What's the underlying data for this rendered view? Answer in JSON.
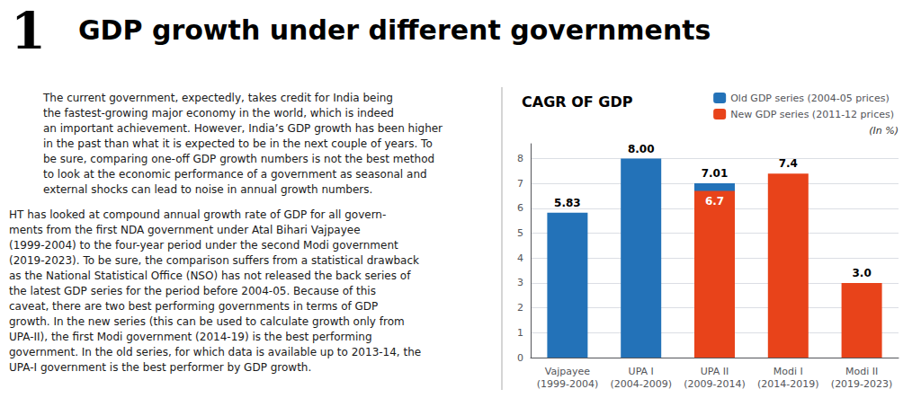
{
  "title_number": "1",
  "title": "GDP growth under different governments",
  "paragraphs": [
    "The current government, expectedly, takes credit for India being\nthe fastest-growing major economy in the world, which is indeed\nan important achievement. However, India’s GDP growth has been higher\nin the past than what it is expected to be in the next couple of years. To\nbe sure, comparing one-off GDP growth numbers is not the best method\nto look at the economic performance of a government as seasonal and\nexternal shocks can lead to noise in annual growth numbers.",
    "HT has looked at compound annual growth rate of GDP for all govern-\nments from the first NDA government under Atal Bihari Vajpayee\n(1999-2004) to the four-year period under the second Modi government\n(2019-2023). To be sure, the comparison suffers from a statistical drawback\nas the National Statistical Office (NSO) has not released the back series of\nthe latest GDP series for the period before 2004-05. Because of this\ncaveat, there are two best performing governments in terms of GDP\ngrowth. In the new series (this can be used to calculate growth only from\nUPA-II), the first Modi government (2014-19) is the best performing\ngovernment. In the old series, for which data is available up to 2013-14, the\nUPA-I government is the best performer by GDP growth."
  ],
  "chart_data": {
    "type": "bar",
    "title": "CAGR OF GDP",
    "annotations": [
      "(In %)"
    ],
    "categories": [
      "Vajpayee\n(1999-2004)",
      "UPA I\n(2004-2009)",
      "UPA II\n(2009-2014)",
      "Modi I\n(2014-2019)",
      "Modi II\n(2019-2023)"
    ],
    "series": [
      {
        "name": "Old GDP series (2004-05 prices)",
        "color": "#2372b8",
        "values": [
          5.83,
          8.0,
          7.01,
          null,
          null
        ],
        "value_labels": [
          "5.83",
          "8.00",
          "7.01",
          null,
          null
        ]
      },
      {
        "name": "New GDP series (2011-12 prices)",
        "color": "#e8431a",
        "values": [
          null,
          null,
          6.7,
          7.4,
          3.0
        ],
        "value_labels": [
          null,
          null,
          "6.7",
          "7.4",
          "3.0"
        ]
      }
    ],
    "ylim": [
      0,
      8.6
    ],
    "yticks": [
      0,
      1,
      2,
      3,
      4,
      5,
      6,
      7,
      8
    ],
    "grid": true,
    "legend": "upper right",
    "data_labels": true
  }
}
